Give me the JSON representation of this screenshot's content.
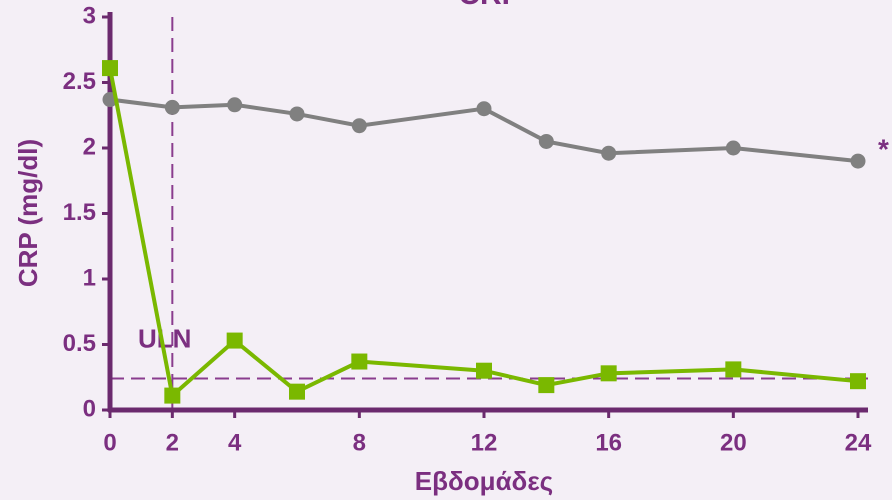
{
  "chart_data": {
    "type": "line",
    "title": "CRP",
    "x": [
      0,
      2,
      4,
      6,
      8,
      12,
      14,
      16,
      20,
      24
    ],
    "series": [
      {
        "color": "#808080",
        "marker": "circle",
        "values": [
          2.37,
          2.31,
          2.33,
          2.26,
          2.17,
          2.3,
          2.05,
          1.96,
          2.0,
          1.9
        ]
      },
      {
        "color": "#7ab800",
        "marker": "square",
        "values": [
          2.61,
          0.11,
          0.53,
          0.14,
          0.37,
          0.3,
          0.19,
          0.28,
          0.31,
          0.22
        ]
      }
    ],
    "xlabel": "Εβδομάδες",
    "ylabel": "CRP (mg/dl)",
    "xlim": [
      0,
      24
    ],
    "xticks": [
      0,
      2,
      4,
      8,
      12,
      16,
      20,
      24
    ],
    "ylim": [
      0,
      3
    ],
    "yticks": [
      0,
      0.5,
      1,
      1.5,
      2,
      2.5,
      3
    ],
    "hline": {
      "value": 0.24,
      "label": "ULN"
    },
    "vline": {
      "value": 2
    },
    "annotation": "*"
  }
}
